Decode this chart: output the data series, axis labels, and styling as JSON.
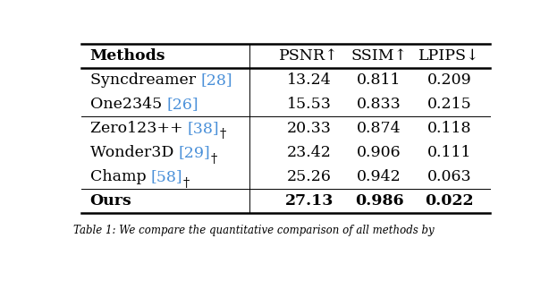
{
  "header": [
    "Methods",
    "PSNR↑",
    "SSIM↑",
    "LPIPS↓"
  ],
  "rows": [
    {
      "base": "Syncdreamer",
      "ref": "[28]",
      "dagger": false,
      "psnr": "13.24",
      "ssim": "0.811",
      "lpips": "0.209",
      "bold": false,
      "group": 1
    },
    {
      "base": "One2345",
      "ref": "[26]",
      "dagger": false,
      "psnr": "15.53",
      "ssim": "0.833",
      "lpips": "0.215",
      "bold": false,
      "group": 1
    },
    {
      "base": "Zero123++",
      "ref": "[38]",
      "dagger": true,
      "psnr": "20.33",
      "ssim": "0.874",
      "lpips": "0.118",
      "bold": false,
      "group": 2
    },
    {
      "base": "Wonder3D",
      "ref": "[29]",
      "dagger": true,
      "psnr": "23.42",
      "ssim": "0.906",
      "lpips": "0.111",
      "bold": false,
      "group": 2
    },
    {
      "base": "Champ",
      "ref": "[58]",
      "dagger": true,
      "psnr": "25.26",
      "ssim": "0.942",
      "lpips": "0.063",
      "bold": false,
      "group": 2
    },
    {
      "base": "Ours",
      "ref": "",
      "dagger": false,
      "psnr": "27.13",
      "ssim": "0.986",
      "lpips": "0.022",
      "bold": true,
      "group": 3
    }
  ],
  "ref_color": "#4a90d9",
  "text_color": "#000000",
  "bg_color": "#ffffff",
  "heavy_lw": 1.8,
  "light_lw": 0.7,
  "font_size": 12.5,
  "caption": "Table 1: We compare the quantitative comparison of all methods by"
}
